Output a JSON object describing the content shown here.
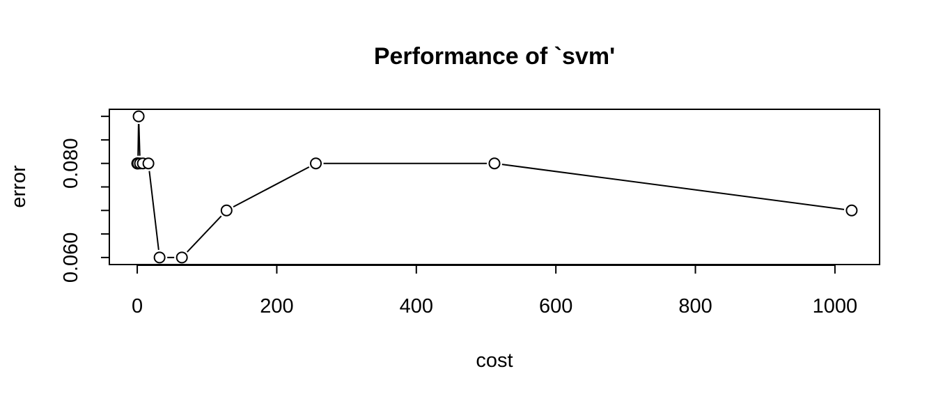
{
  "chart_data": {
    "type": "line",
    "title": "Performance of `svm'",
    "xlabel": "cost",
    "ylabel": "error",
    "xlim": [
      -40,
      1064
    ],
    "ylim": [
      0.0585,
      0.0915
    ],
    "x_ticks": [
      0,
      200,
      400,
      600,
      800,
      1000
    ],
    "x_tick_labels": [
      "0",
      "200",
      "400",
      "600",
      "800",
      "1000"
    ],
    "y_ticks": [
      0.06,
      0.065,
      0.07,
      0.075,
      0.08,
      0.085,
      0.09
    ],
    "y_tick_labels": [
      "0.060",
      "",
      "",
      "",
      "0.080",
      "",
      ""
    ],
    "grid": false,
    "legend": "none",
    "marker": "open-circle",
    "colors": {
      "line": "#000000",
      "marker_fill": "#ffffff",
      "marker_stroke": "#000000"
    },
    "series": [
      {
        "x": [
          0.0625,
          0.125,
          0.25,
          0.5,
          1,
          2,
          4,
          8,
          16,
          32,
          64,
          128,
          256,
          512,
          1024
        ],
        "y": [
          0.08,
          0.08,
          0.08,
          0.08,
          0.08,
          0.09,
          0.08,
          0.08,
          0.08,
          0.06,
          0.06,
          0.07,
          0.08,
          0.08,
          0.07
        ]
      }
    ]
  }
}
